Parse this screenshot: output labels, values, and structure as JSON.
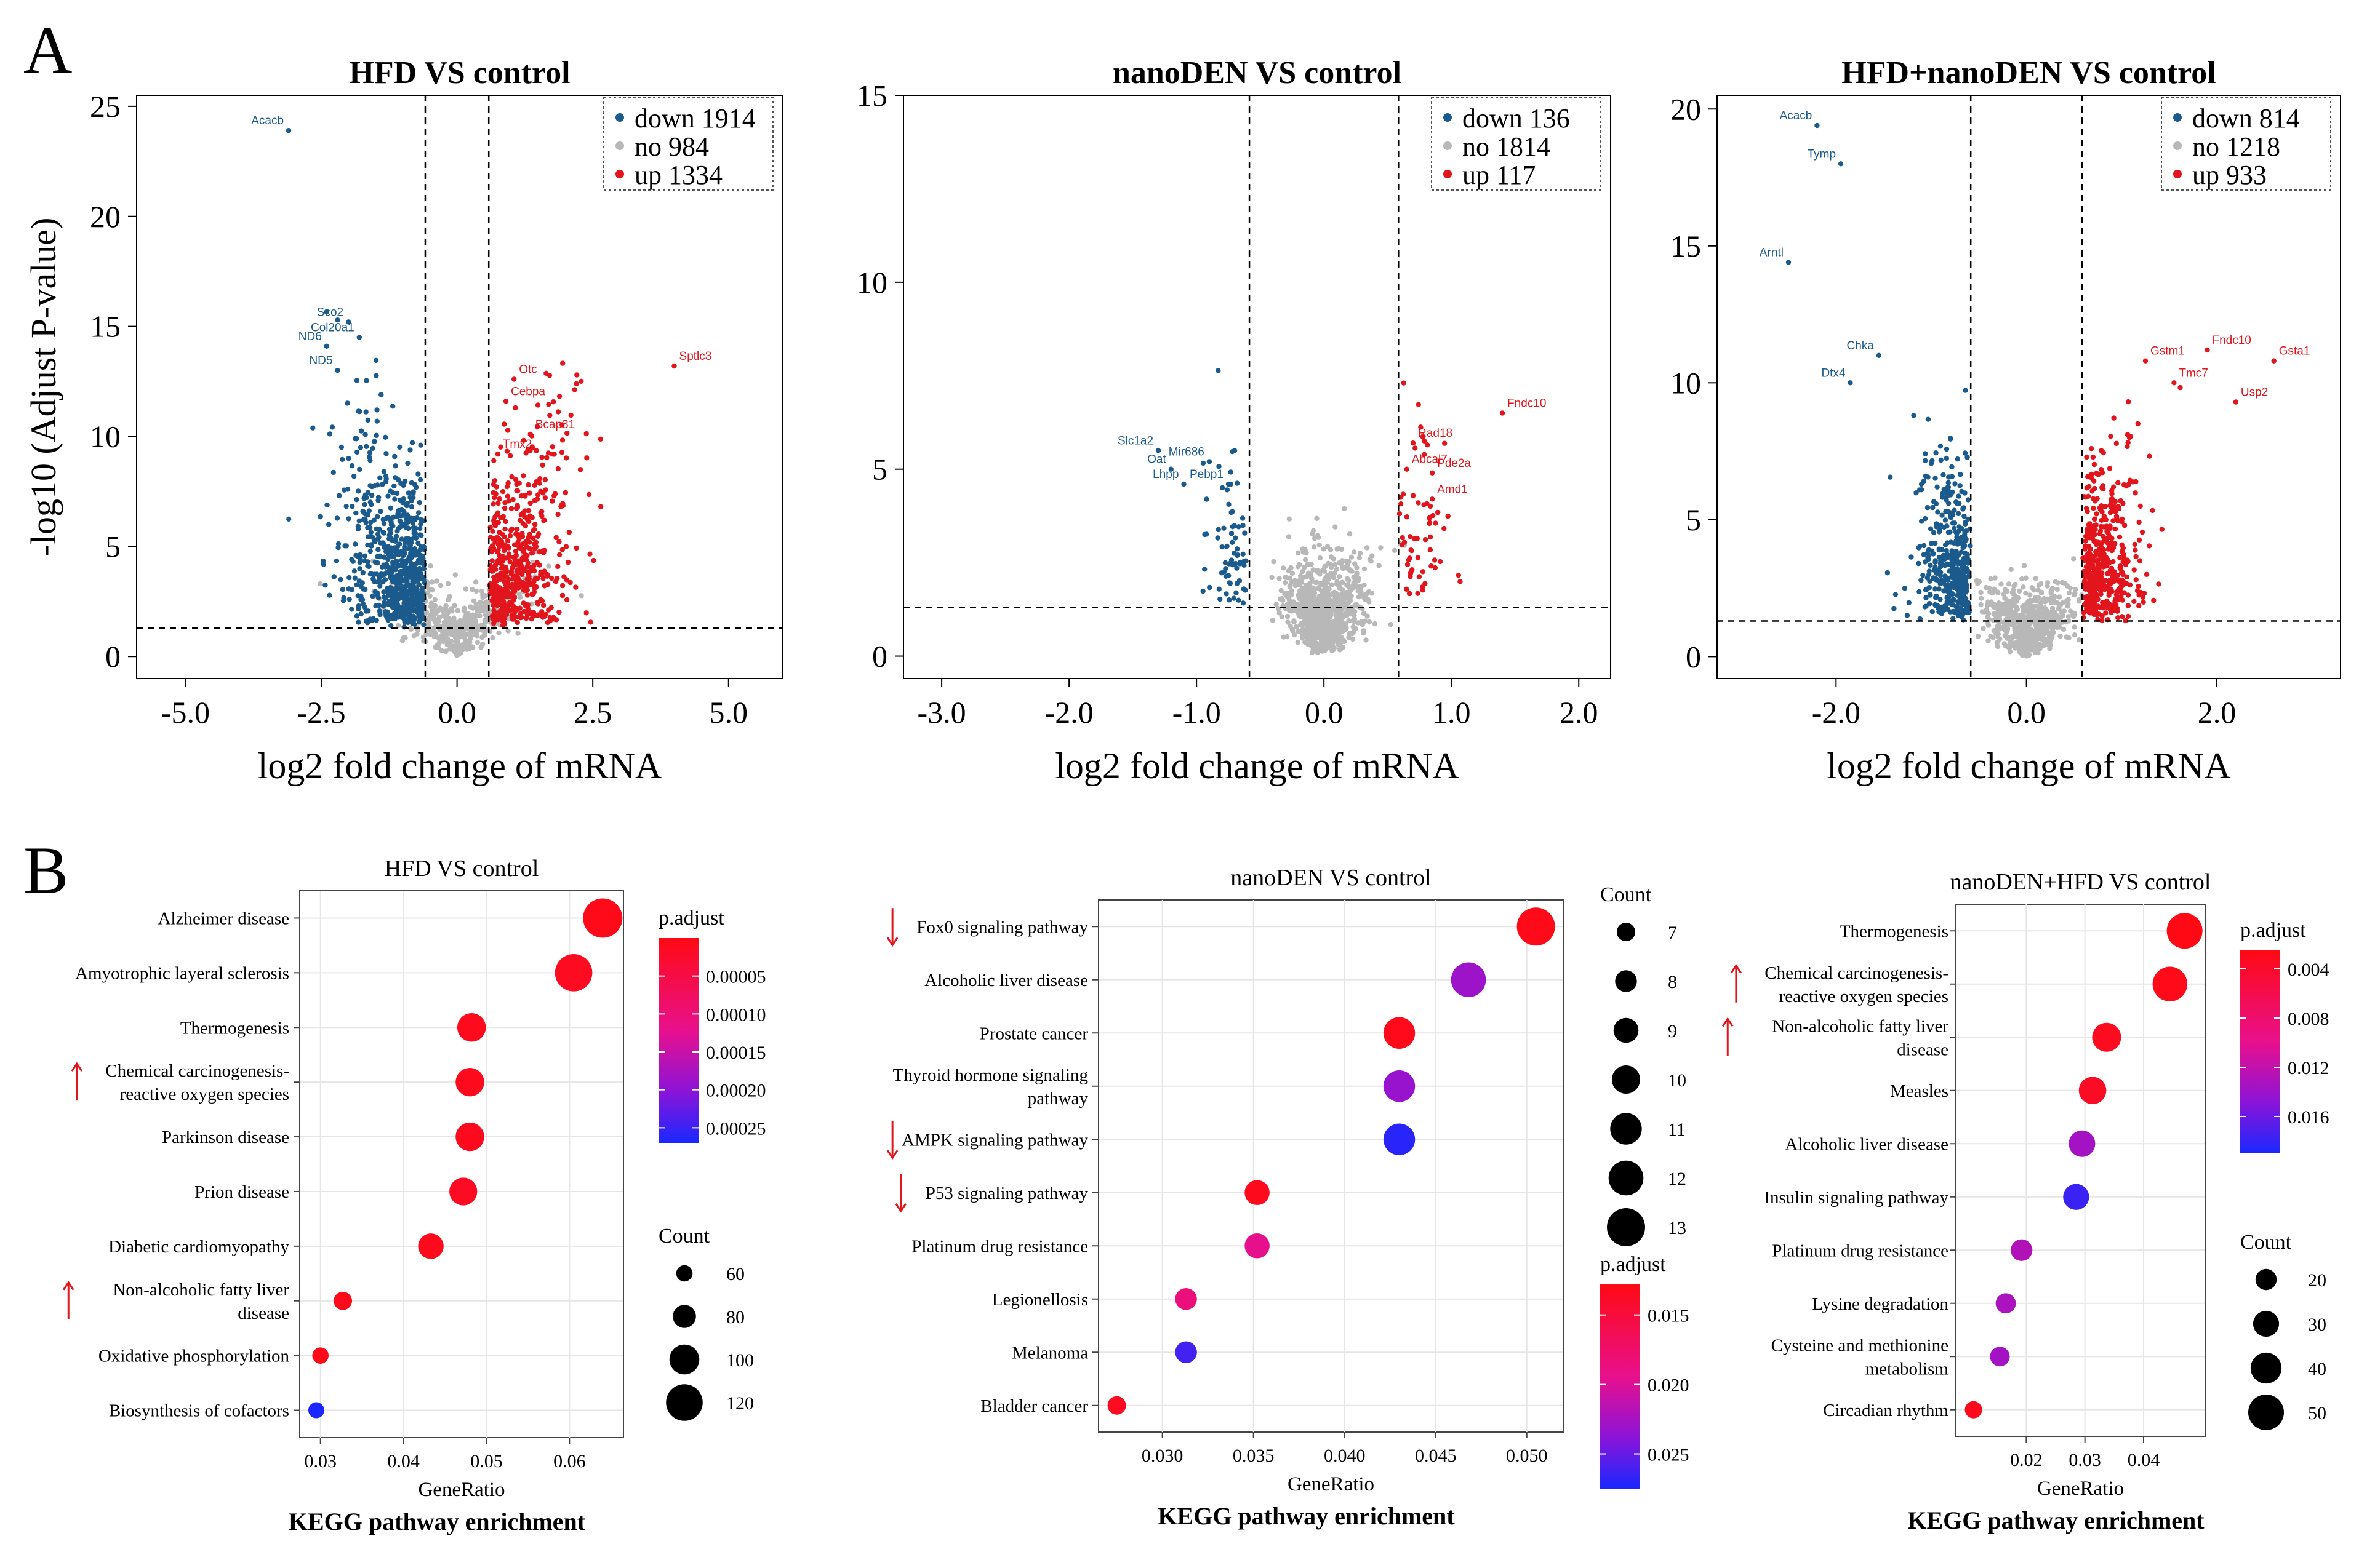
{
  "panel_labels": [
    "A",
    "B"
  ],
  "colors": {
    "down": "#1b5a8c",
    "no": "#b8b8b8",
    "up": "#e3151c",
    "red_text": "#e3151c"
  },
  "chart_data": [
    {
      "type": "scatter",
      "id": "volcano1",
      "title": "HFD VS control",
      "xlabel": "log2 fold change of mRNA",
      "ylabel": "-log10 (Adjust P-value)",
      "xlim": [
        -5.9,
        6.0
      ],
      "ylim": [
        -1.0,
        25.5
      ],
      "xticks": [
        -5.0,
        -2.5,
        0.0,
        2.5,
        5.0
      ],
      "xtick_labels": [
        "-5.0",
        "-2.5",
        "0.0",
        "2.5",
        "5.0"
      ],
      "yticks": [
        0,
        5,
        10,
        15,
        20,
        25
      ],
      "thresholds": {
        "fc": 0.585,
        "p": 1.3
      },
      "legend": [
        {
          "label": "down 1914",
          "color": "down"
        },
        {
          "label": "no 984",
          "color": "no"
        },
        {
          "label": "up 1334",
          "color": "up"
        }
      ],
      "genes": [
        {
          "label": "Acacb",
          "x": -3.1,
          "y": 23.9,
          "group": "down"
        },
        {
          "label": "Sco2",
          "x": -2.0,
          "y": 15.2,
          "group": "down"
        },
        {
          "label": "ND6",
          "x": -2.4,
          "y": 14.1,
          "group": "down"
        },
        {
          "label": "Col20a1",
          "x": -1.8,
          "y": 14.5,
          "group": "down"
        },
        {
          "label": "ND5",
          "x": -2.2,
          "y": 13.0,
          "group": "down"
        },
        {
          "label": "Sptlc3",
          "x": 4.0,
          "y": 13.2,
          "group": "up"
        },
        {
          "label": "Otc",
          "x": 1.05,
          "y": 12.6,
          "group": "up"
        },
        {
          "label": "Cebpa",
          "x": 0.9,
          "y": 11.6,
          "group": "up"
        },
        {
          "label": "Bcap31",
          "x": 1.35,
          "y": 10.1,
          "group": "up"
        },
        {
          "label": "Tmx2",
          "x": 0.75,
          "y": 9.2,
          "group": "up"
        }
      ]
    },
    {
      "type": "scatter",
      "id": "volcano2",
      "title": "nanoDEN VS control",
      "xlabel": "log2 fold change of mRNA",
      "ylabel": "",
      "xlim": [
        -3.3,
        2.25
      ],
      "ylim": [
        -0.6,
        15.0
      ],
      "xticks": [
        -3.0,
        -2.0,
        -1.0,
        0.0,
        1.0,
        2.0
      ],
      "xtick_labels": [
        "-3.0",
        "-2.0",
        "-1.0",
        "0.0",
        "1.0",
        "2.0"
      ],
      "yticks": [
        0,
        5,
        10,
        15
      ],
      "thresholds": {
        "fc": 0.585,
        "p": 1.3
      },
      "legend": [
        {
          "label": "down 136",
          "color": "down"
        },
        {
          "label": "no 1814",
          "color": "no"
        },
        {
          "label": "up 117",
          "color": "up"
        }
      ],
      "genes": [
        {
          "label": "Slc1a2",
          "x": -1.3,
          "y": 5.5,
          "group": "down"
        },
        {
          "label": "Oat",
          "x": -1.2,
          "y": 5.0,
          "group": "down"
        },
        {
          "label": "Mir686",
          "x": -0.9,
          "y": 5.2,
          "group": "down"
        },
        {
          "label": "Lhpp",
          "x": -1.1,
          "y": 4.6,
          "group": "down"
        },
        {
          "label": "Pebp1",
          "x": -0.75,
          "y": 4.6,
          "group": "down"
        },
        {
          "label": "Fndc10",
          "x": 1.4,
          "y": 6.5,
          "group": "up"
        },
        {
          "label": "Rad18",
          "x": 0.7,
          "y": 5.7,
          "group": "up"
        },
        {
          "label": "Abcal7",
          "x": 0.65,
          "y": 5.0,
          "group": "up"
        },
        {
          "label": "Pde2a",
          "x": 0.85,
          "y": 4.9,
          "group": "up"
        },
        {
          "label": "Amd1",
          "x": 0.85,
          "y": 4.2,
          "group": "up"
        }
      ]
    },
    {
      "type": "scatter",
      "id": "volcano3",
      "title": "HFD+nanoDEN VS control",
      "xlabel": "log2 fold change of mRNA",
      "ylabel": "",
      "xlim": [
        -3.25,
        3.3
      ],
      "ylim": [
        -0.8,
        20.5
      ],
      "xticks": [
        -2.0,
        0.0,
        2.0
      ],
      "xtick_labels": [
        "-2.0",
        "0.0",
        "2.0"
      ],
      "yticks": [
        0,
        5,
        10,
        15,
        20
      ],
      "thresholds": {
        "fc": 0.585,
        "p": 1.3
      },
      "legend": [
        {
          "label": "down 814",
          "color": "down"
        },
        {
          "label": "no 1218",
          "color": "no"
        },
        {
          "label": "up 933",
          "color": "up"
        }
      ],
      "genes": [
        {
          "label": "Acacb",
          "x": -2.2,
          "y": 19.4,
          "group": "down"
        },
        {
          "label": "Tymp",
          "x": -1.95,
          "y": 18.0,
          "group": "down"
        },
        {
          "label": "Arntl",
          "x": -2.5,
          "y": 14.4,
          "group": "down"
        },
        {
          "label": "Chka",
          "x": -1.55,
          "y": 11.0,
          "group": "down"
        },
        {
          "label": "Dtx4",
          "x": -1.85,
          "y": 10.0,
          "group": "down"
        },
        {
          "label": "Gstm1",
          "x": 1.25,
          "y": 10.8,
          "group": "up"
        },
        {
          "label": "Fndc10",
          "x": 1.9,
          "y": 11.2,
          "group": "up"
        },
        {
          "label": "Gsta1",
          "x": 2.6,
          "y": 10.8,
          "group": "up"
        },
        {
          "label": "Tmc7",
          "x": 1.55,
          "y": 10.0,
          "group": "up"
        },
        {
          "label": "Usp2",
          "x": 2.2,
          "y": 9.3,
          "group": "up"
        }
      ]
    },
    {
      "type": "scatter",
      "id": "kegg1",
      "title": "HFD VS control",
      "xlabel": "GeneRatio",
      "subtitle": "KEGG pathway enrichment",
      "xlim": [
        0.0275,
        0.0665
      ],
      "xticks": [
        0.03,
        0.04,
        0.05,
        0.06
      ],
      "xtick_labels": [
        "0.03",
        "0.04",
        "0.05",
        "0.06"
      ],
      "categories": [
        {
          "label": "Alzheimer disease",
          "ratio": 0.064,
          "count": 128,
          "padj": 5e-06
        },
        {
          "label": "Amyotrophic layeral sclerosis",
          "ratio": 0.0605,
          "count": 122,
          "padj": 1.2e-05
        },
        {
          "label": "Thermogenesis",
          "ratio": 0.0482,
          "count": 96,
          "padj": 8e-06
        },
        {
          "label": "Chemical carcinogenesis-|reactive oxygen species",
          "ratio": 0.048,
          "count": 96,
          "padj": 9e-06,
          "highlight": true,
          "dir": "up"
        },
        {
          "label": "Parkinson disease",
          "ratio": 0.048,
          "count": 96,
          "padj": 1e-05,
          "padj_note": ""
        },
        {
          "label": "Prion disease",
          "ratio": 0.0472,
          "count": 94,
          "padj": 1.5e-05
        },
        {
          "label": "Diabetic cardiomyopathy",
          "ratio": 0.0433,
          "count": 87,
          "padj": 8e-06
        },
        {
          "label": "Non-alcoholic fatty liver|disease",
          "ratio": 0.0327,
          "count": 66,
          "padj": 6e-06,
          "highlight": true,
          "dir": "up"
        },
        {
          "label": "Oxidative phosphorylation",
          "ratio": 0.03,
          "count": 60,
          "padj": 4e-06
        },
        {
          "label": "Biosynthesis of cofactors",
          "ratio": 0.0295,
          "count": 59,
          "padj": 0.00028
        }
      ],
      "color_legend": {
        "title": "p.adjust",
        "ticks": [
          "0.00005",
          "0.00010",
          "0.00015",
          "0.00020",
          "0.00025"
        ],
        "values": [
          5e-05,
          0.0001,
          0.00015,
          0.0002,
          0.00025
        ],
        "range": [
          0.0,
          0.00027
        ]
      },
      "size_legend": {
        "title": "Count",
        "values": [
          60,
          80,
          100,
          120
        ],
        "labels": [
          "60",
          "80",
          "100",
          "120"
        ],
        "size_range": [
          59,
          128
        ]
      }
    },
    {
      "type": "scatter",
      "id": "kegg2",
      "title": "nanoDEN VS control",
      "xlabel": "GeneRatio",
      "subtitle": "KEGG pathway enrichment",
      "xlim": [
        0.0265,
        0.052
      ],
      "xticks": [
        0.03,
        0.035,
        0.04,
        0.045,
        0.05
      ],
      "xtick_labels": [
        "0.030",
        "0.035",
        "0.040",
        "0.045",
        "0.050"
      ],
      "categories": [
        {
          "label": "Fox0 signaling pathway",
          "ratio": 0.0505,
          "count": 13,
          "padj": 0.013,
          "highlight": true,
          "dir": "down"
        },
        {
          "label": "Alcoholic liver disease",
          "ratio": 0.0468,
          "count": 12,
          "padj": 0.023
        },
        {
          "label": "Prostate cancer",
          "ratio": 0.043,
          "count": 11,
          "padj": 0.0132
        },
        {
          "label": "Thyroid hormone signaling|pathway",
          "ratio": 0.043,
          "count": 11,
          "padj": 0.0232
        },
        {
          "label": "AMPK signaling pathway",
          "ratio": 0.043,
          "count": 11,
          "padj": 0.027,
          "highlight": true,
          "dir": "down"
        },
        {
          "label": "P53 signaling pathway",
          "ratio": 0.0352,
          "count": 9,
          "padj": 0.0133
        },
        {
          "label": "Platinum drug resistance",
          "ratio": 0.0352,
          "count": 9,
          "padj": 0.0195
        },
        {
          "label": "Legionellosis",
          "ratio": 0.0313,
          "count": 8,
          "padj": 0.0185
        },
        {
          "label": "Melanoma",
          "ratio": 0.0313,
          "count": 8,
          "padj": 0.0262
        },
        {
          "label": "Bladder cancer",
          "ratio": 0.0275,
          "count": 7,
          "padj": 0.0135
        }
      ],
      "p53_highlight": true,
      "color_legend": {
        "title": "p.adjust",
        "ticks": [
          "0.015",
          "0.020",
          "0.025"
        ],
        "values": [
          0.015,
          0.02,
          0.025
        ],
        "range": [
          0.0128,
          0.0275
        ]
      },
      "size_legend": {
        "title": "Count",
        "values": [
          7,
          8,
          9,
          10,
          11,
          12,
          13
        ],
        "labels": [
          "7",
          "8",
          "9",
          "10",
          "11",
          "12",
          "13"
        ],
        "size_range": [
          7,
          13
        ]
      }
    },
    {
      "type": "scatter",
      "id": "kegg3",
      "title": "nanoDEN+HFD VS control",
      "xlabel": "GeneRatio",
      "subtitle": "KEGG pathway enrichment",
      "xlim": [
        0.008,
        0.0505
      ],
      "xticks": [
        0.02,
        0.03,
        0.04
      ],
      "xtick_labels": [
        "0.02",
        "0.03",
        "0.04"
      ],
      "categories": [
        {
          "label": "Thermogenesis",
          "ratio": 0.047,
          "count": 50,
          "padj": 0.0025
        },
        {
          "label": "Chemical carcinogenesis-|reactive oxygen species",
          "ratio": 0.0445,
          "count": 48,
          "padj": 0.0028,
          "highlight": true,
          "dir": "up"
        },
        {
          "label": "Non-alcoholic fatty liver|disease",
          "ratio": 0.0337,
          "count": 36,
          "padj": 0.0032,
          "highlight": true,
          "dir": "up"
        },
        {
          "label": "Measles",
          "ratio": 0.0313,
          "count": 33,
          "padj": 0.0035
        },
        {
          "label": "Alcoholic liver disease",
          "ratio": 0.0295,
          "count": 31,
          "padj": 0.0135
        },
        {
          "label": "Insulin signaling pathway",
          "ratio": 0.0285,
          "count": 30,
          "padj": 0.0178
        },
        {
          "label": "Platinum drug resistance",
          "ratio": 0.0192,
          "count": 21,
          "padj": 0.0128
        },
        {
          "label": "Lysine degradation",
          "ratio": 0.0165,
          "count": 18,
          "padj": 0.0132
        },
        {
          "label": "Cysteine and methionine|metabolism",
          "ratio": 0.0155,
          "count": 17,
          "padj": 0.0135
        },
        {
          "label": "Circadian rhythm",
          "ratio": 0.011,
          "count": 12,
          "padj": 0.003
        }
      ],
      "color_legend": {
        "title": "p.adjust",
        "ticks": [
          "0.004",
          "0.008",
          "0.012",
          "0.016"
        ],
        "values": [
          0.004,
          0.008,
          0.012,
          0.016
        ],
        "range": [
          0.0025,
          0.019
        ]
      },
      "size_legend": {
        "title": "Count",
        "values": [
          20,
          30,
          40,
          50
        ],
        "labels": [
          "20",
          "30",
          "40",
          "50"
        ],
        "size_range": [
          12,
          50
        ]
      }
    }
  ]
}
